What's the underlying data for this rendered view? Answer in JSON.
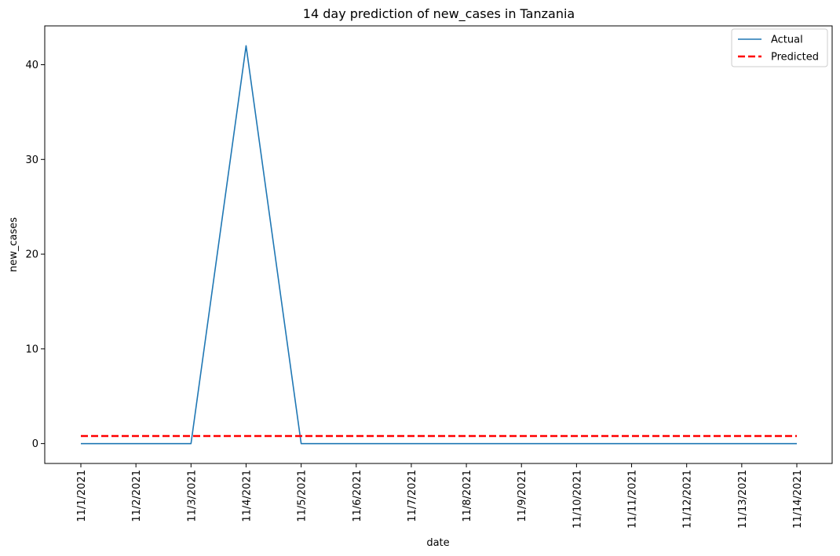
{
  "chart_data": {
    "type": "line",
    "title": "14 day prediction of new_cases in Tanzania",
    "xlabel": "date",
    "ylabel": "new_cases",
    "x": [
      "11/1/2021",
      "11/2/2021",
      "11/3/2021",
      "11/4/2021",
      "11/5/2021",
      "11/6/2021",
      "11/7/2021",
      "11/8/2021",
      "11/9/2021",
      "11/10/2021",
      "11/11/2021",
      "11/12/2021",
      "11/13/2021",
      "11/14/2021"
    ],
    "ylim": [
      -2.1,
      44.1
    ],
    "yticks": [
      0,
      10,
      20,
      30,
      40
    ],
    "grid": false,
    "legend_position": "top-right",
    "series": [
      {
        "name": "Actual",
        "color": "#1f77b4",
        "style": "solid",
        "values": [
          0,
          0,
          0,
          42,
          0,
          0,
          0,
          0,
          0,
          0,
          0,
          0,
          0,
          0
        ]
      },
      {
        "name": "Predicted",
        "color": "#ff0000",
        "style": "dashed",
        "values": [
          0.8,
          0.8,
          0.8,
          0.8,
          0.8,
          0.8,
          0.8,
          0.8,
          0.8,
          0.8,
          0.8,
          0.8,
          0.8,
          0.8
        ]
      }
    ]
  }
}
